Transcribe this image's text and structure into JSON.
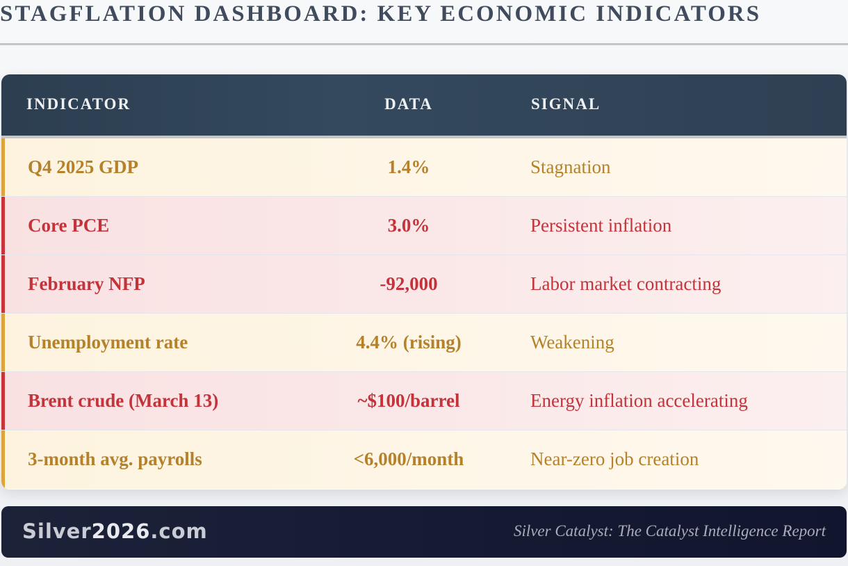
{
  "title": "STAGFLATION DASHBOARD: KEY ECONOMIC INDICATORS",
  "table": {
    "headers": {
      "indicator": "INDICATOR",
      "data": "DATA",
      "signal": "SIGNAL"
    },
    "rows": [
      {
        "indicator": "Q4 2025 GDP",
        "data": "1.4%",
        "signal": "Stagnation",
        "severity": "amber"
      },
      {
        "indicator": "Core PCE",
        "data": "3.0%",
        "signal": "Persistent inflation",
        "severity": "red"
      },
      {
        "indicator": "February NFP",
        "data": "-92,000",
        "signal": "Labor market contracting",
        "severity": "red"
      },
      {
        "indicator": "Unemployment rate",
        "data": "4.4% (rising)",
        "signal": "Weakening",
        "severity": "amber"
      },
      {
        "indicator": "Brent crude (March 13)",
        "data": "~$100/barrel",
        "signal": "Energy inflation accelerating",
        "severity": "red"
      },
      {
        "indicator": "3-month avg. payrolls",
        "data": "<6,000/month",
        "signal": "Near-zero job creation",
        "severity": "amber"
      }
    ]
  },
  "footer": {
    "brand_prefix": "Silver",
    "brand_number": "2026",
    "brand_suffix": ".com",
    "tagline": "Silver Catalyst: The Catalyst Intelligence Report"
  },
  "colors": {
    "amber": "#b5812a",
    "red": "#c4323a",
    "header_bg": "#2c3e50",
    "footer_bg": "#151a33"
  }
}
